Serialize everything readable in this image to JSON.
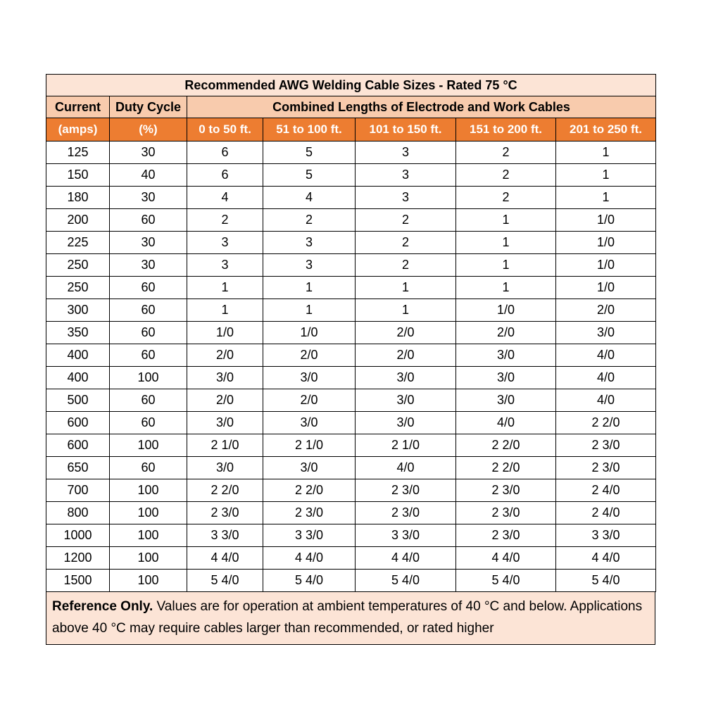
{
  "chart_data": {
    "type": "table",
    "title": "Recommended AWG Welding Cable Sizes - Rated 75 °C",
    "header": {
      "current": "Current",
      "duty_cycle": "Duty Cycle",
      "combined_lengths": "Combined Lengths of Electrode and Work Cables"
    },
    "subheaders": [
      "(amps)",
      "(%)",
      "0 to 50 ft.",
      "51 to 100 ft.",
      "101 to 150 ft.",
      "151 to 200 ft.",
      "201 to 250 ft."
    ],
    "rows": [
      [
        "125",
        "30",
        "6",
        "5",
        "3",
        "2",
        "1"
      ],
      [
        "150",
        "40",
        "6",
        "5",
        "3",
        "2",
        "1"
      ],
      [
        "180",
        "30",
        "4",
        "4",
        "3",
        "2",
        "1"
      ],
      [
        "200",
        "60",
        "2",
        "2",
        "2",
        "1",
        "1/0"
      ],
      [
        "225",
        "30",
        "3",
        "3",
        "2",
        "1",
        "1/0"
      ],
      [
        "250",
        "30",
        "3",
        "3",
        "2",
        "1",
        "1/0"
      ],
      [
        "250",
        "60",
        "1",
        "1",
        "1",
        "1",
        "1/0"
      ],
      [
        "300",
        "60",
        "1",
        "1",
        "1",
        "1/0",
        "2/0"
      ],
      [
        "350",
        "60",
        "1/0",
        "1/0",
        "2/0",
        "2/0",
        "3/0"
      ],
      [
        "400",
        "60",
        "2/0",
        "2/0",
        "2/0",
        "3/0",
        "4/0"
      ],
      [
        "400",
        "100",
        "3/0",
        "3/0",
        "3/0",
        "3/0",
        "4/0"
      ],
      [
        "500",
        "60",
        "2/0",
        "2/0",
        "3/0",
        "3/0",
        "4/0"
      ],
      [
        "600",
        "60",
        "3/0",
        "3/0",
        "3/0",
        "4/0",
        "2 2/0"
      ],
      [
        "600",
        "100",
        "2 1/0",
        "2 1/0",
        "2 1/0",
        "2 2/0",
        "2 3/0"
      ],
      [
        "650",
        "60",
        "3/0",
        "3/0",
        "4/0",
        "2 2/0",
        "2 3/0"
      ],
      [
        "700",
        "100",
        "2 2/0",
        "2 2/0",
        "2 3/0",
        "2 3/0",
        "2 4/0"
      ],
      [
        "800",
        "100",
        "2 3/0",
        "2 3/0",
        "2 3/0",
        "2 3/0",
        "2 4/0"
      ],
      [
        "1000",
        "100",
        "3 3/0",
        "3 3/0",
        "3 3/0",
        "2 3/0",
        "3 3/0"
      ],
      [
        "1200",
        "100",
        "4 4/0",
        "4 4/0",
        "4 4/0",
        "4 4/0",
        "4 4/0"
      ],
      [
        "1500",
        "100",
        "5 4/0",
        "5 4/0",
        "5 4/0",
        "5 4/0",
        "5 4/0"
      ]
    ]
  },
  "footer": {
    "lead": "Reference Only.",
    "text": " Values are for operation at ambient temperatures of 40 °C and below. Applications above 40 °C may require cables larger than recommended, or rated higher"
  },
  "colors": {
    "title_bg": "#FCE4D6",
    "header_bg": "#F8CBAD",
    "subheader_bg": "#ED7D31",
    "subheader_text": "#FFFFFF",
    "border": "#000000"
  }
}
